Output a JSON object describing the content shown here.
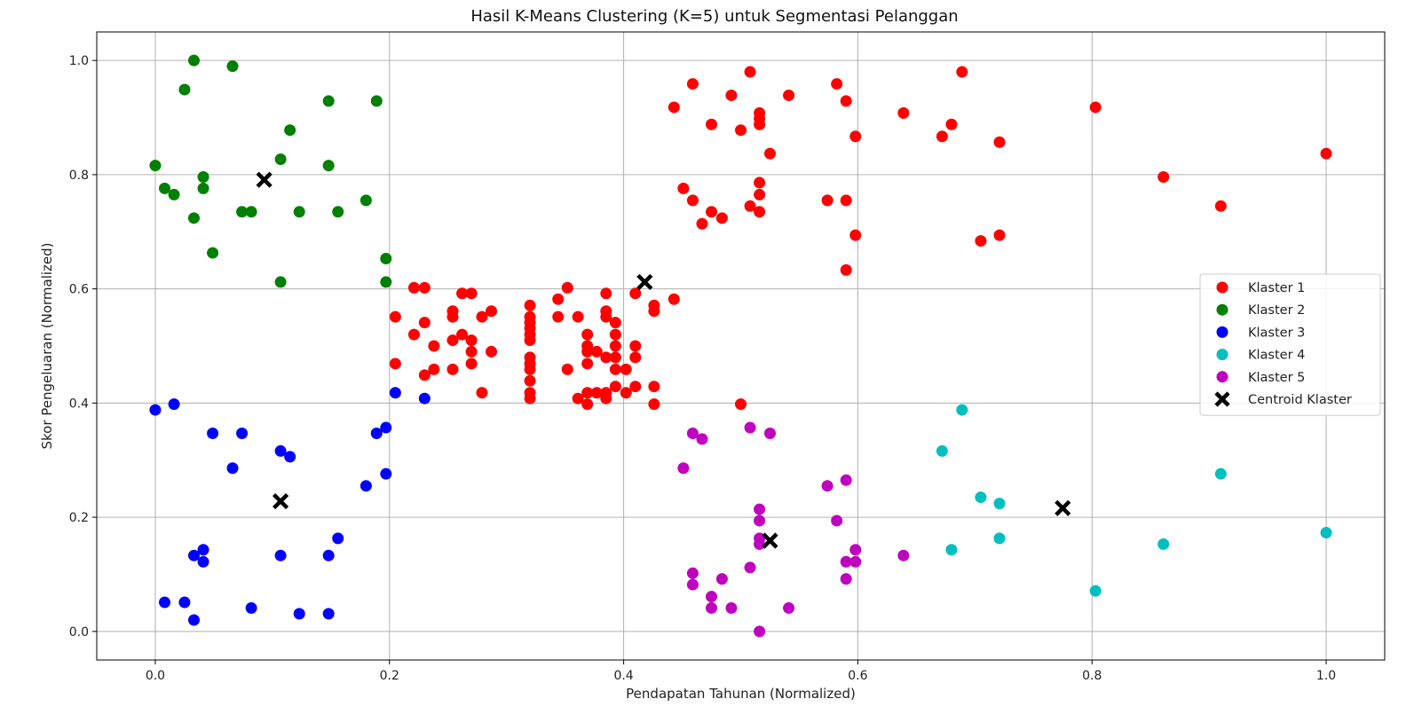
{
  "chart_data": {
    "type": "scatter",
    "title": "Hasil K-Means Clustering (K=5) untuk Segmentasi Pelanggan",
    "xlabel": "Pendapatan Tahunan (Normalized)",
    "ylabel": "Skor Pengeluaran (Normalized)",
    "xlim": [
      -0.05,
      1.05
    ],
    "ylim": [
      -0.05,
      1.05
    ],
    "xticks": [
      0.0,
      0.2,
      0.4,
      0.6,
      0.8,
      1.0
    ],
    "yticks": [
      0.0,
      0.2,
      0.4,
      0.6,
      0.8,
      1.0
    ],
    "xtick_labels": [
      "0.0",
      "0.2",
      "0.4",
      "0.6",
      "0.8",
      "1.0"
    ],
    "ytick_labels": [
      "0.0",
      "0.2",
      "0.4",
      "0.6",
      "0.8",
      "1.0"
    ],
    "grid": true,
    "legend_position": "center-right",
    "series": [
      {
        "name": "Klaster 1",
        "color": "#ff0000",
        "points": [
          [
            0.205,
            0.551
          ],
          [
            0.205,
            0.469
          ],
          [
            0.221,
            0.52
          ],
          [
            0.221,
            0.602
          ],
          [
            0.23,
            0.602
          ],
          [
            0.23,
            0.541
          ],
          [
            0.23,
            0.449
          ],
          [
            0.238,
            0.5
          ],
          [
            0.238,
            0.459
          ],
          [
            0.254,
            0.561
          ],
          [
            0.254,
            0.551
          ],
          [
            0.254,
            0.51
          ],
          [
            0.254,
            0.459
          ],
          [
            0.262,
            0.592
          ],
          [
            0.262,
            0.52
          ],
          [
            0.27,
            0.592
          ],
          [
            0.27,
            0.51
          ],
          [
            0.27,
            0.49
          ],
          [
            0.27,
            0.469
          ],
          [
            0.279,
            0.551
          ],
          [
            0.279,
            0.418
          ],
          [
            0.287,
            0.561
          ],
          [
            0.287,
            0.49
          ],
          [
            0.32,
            0.571
          ],
          [
            0.32,
            0.551
          ],
          [
            0.32,
            0.541
          ],
          [
            0.32,
            0.531
          ],
          [
            0.32,
            0.52
          ],
          [
            0.32,
            0.51
          ],
          [
            0.32,
            0.48
          ],
          [
            0.32,
            0.469
          ],
          [
            0.32,
            0.459
          ],
          [
            0.32,
            0.439
          ],
          [
            0.32,
            0.418
          ],
          [
            0.32,
            0.408
          ],
          [
            0.344,
            0.582
          ],
          [
            0.344,
            0.551
          ],
          [
            0.352,
            0.602
          ],
          [
            0.352,
            0.459
          ],
          [
            0.361,
            0.551
          ],
          [
            0.361,
            0.408
          ],
          [
            0.369,
            0.52
          ],
          [
            0.369,
            0.5
          ],
          [
            0.369,
            0.49
          ],
          [
            0.369,
            0.469
          ],
          [
            0.369,
            0.418
          ],
          [
            0.369,
            0.398
          ],
          [
            0.377,
            0.49
          ],
          [
            0.377,
            0.418
          ],
          [
            0.385,
            0.592
          ],
          [
            0.385,
            0.561
          ],
          [
            0.385,
            0.551
          ],
          [
            0.385,
            0.48
          ],
          [
            0.385,
            0.418
          ],
          [
            0.385,
            0.408
          ],
          [
            0.393,
            0.541
          ],
          [
            0.393,
            0.52
          ],
          [
            0.393,
            0.5
          ],
          [
            0.393,
            0.48
          ],
          [
            0.393,
            0.459
          ],
          [
            0.393,
            0.429
          ],
          [
            0.402,
            0.459
          ],
          [
            0.402,
            0.418
          ],
          [
            0.41,
            0.592
          ],
          [
            0.41,
            0.5
          ],
          [
            0.41,
            0.48
          ],
          [
            0.41,
            0.429
          ],
          [
            0.426,
            0.571
          ],
          [
            0.426,
            0.561
          ],
          [
            0.426,
            0.429
          ],
          [
            0.426,
            0.398
          ],
          [
            0.443,
            0.582
          ],
          [
            0.443,
            0.918
          ],
          [
            0.451,
            0.776
          ],
          [
            0.459,
            0.959
          ],
          [
            0.459,
            0.755
          ],
          [
            0.467,
            0.714
          ],
          [
            0.475,
            0.888
          ],
          [
            0.475,
            0.735
          ],
          [
            0.484,
            0.724
          ],
          [
            0.492,
            0.939
          ],
          [
            0.5,
            0.878
          ],
          [
            0.508,
            0.98
          ],
          [
            0.508,
            0.745
          ],
          [
            0.516,
            0.908
          ],
          [
            0.516,
            0.898
          ],
          [
            0.516,
            0.888
          ],
          [
            0.516,
            0.786
          ],
          [
            0.516,
            0.765
          ],
          [
            0.516,
            0.735
          ],
          [
            0.525,
            0.837
          ],
          [
            0.541,
            0.939
          ],
          [
            0.574,
            0.755
          ],
          [
            0.582,
            0.959
          ],
          [
            0.59,
            0.929
          ],
          [
            0.59,
            0.755
          ],
          [
            0.59,
            0.633
          ],
          [
            0.598,
            0.867
          ],
          [
            0.598,
            0.694
          ],
          [
            0.639,
            0.908
          ],
          [
            0.672,
            0.867
          ],
          [
            0.68,
            0.888
          ],
          [
            0.689,
            0.98
          ],
          [
            0.705,
            0.684
          ],
          [
            0.721,
            0.857
          ],
          [
            0.721,
            0.694
          ],
          [
            0.803,
            0.918
          ],
          [
            0.861,
            0.796
          ],
          [
            0.91,
            0.745
          ],
          [
            1.0,
            0.837
          ],
          [
            0.5,
            0.398
          ]
        ]
      },
      {
        "name": "Klaster 2",
        "color": "#008000",
        "points": [
          [
            0.0,
            0.816
          ],
          [
            0.008,
            0.776
          ],
          [
            0.016,
            0.765
          ],
          [
            0.025,
            0.949
          ],
          [
            0.033,
            1.0
          ],
          [
            0.033,
            0.724
          ],
          [
            0.041,
            0.796
          ],
          [
            0.041,
            0.776
          ],
          [
            0.049,
            0.663
          ],
          [
            0.066,
            0.99
          ],
          [
            0.074,
            0.735
          ],
          [
            0.082,
            0.735
          ],
          [
            0.107,
            0.827
          ],
          [
            0.107,
            0.612
          ],
          [
            0.115,
            0.878
          ],
          [
            0.123,
            0.735
          ],
          [
            0.148,
            0.929
          ],
          [
            0.148,
            0.816
          ],
          [
            0.156,
            0.735
          ],
          [
            0.18,
            0.755
          ],
          [
            0.189,
            0.929
          ],
          [
            0.197,
            0.653
          ],
          [
            0.197,
            0.612
          ]
        ]
      },
      {
        "name": "Klaster 3",
        "color": "#0000ff",
        "points": [
          [
            0.0,
            0.388
          ],
          [
            0.008,
            0.051
          ],
          [
            0.016,
            0.398
          ],
          [
            0.025,
            0.051
          ],
          [
            0.033,
            0.133
          ],
          [
            0.033,
            0.02
          ],
          [
            0.041,
            0.143
          ],
          [
            0.041,
            0.122
          ],
          [
            0.049,
            0.347
          ],
          [
            0.066,
            0.286
          ],
          [
            0.074,
            0.347
          ],
          [
            0.082,
            0.041
          ],
          [
            0.107,
            0.316
          ],
          [
            0.107,
            0.133
          ],
          [
            0.115,
            0.306
          ],
          [
            0.123,
            0.031
          ],
          [
            0.148,
            0.133
          ],
          [
            0.148,
            0.031
          ],
          [
            0.156,
            0.163
          ],
          [
            0.18,
            0.255
          ],
          [
            0.189,
            0.347
          ],
          [
            0.197,
            0.357
          ],
          [
            0.197,
            0.276
          ],
          [
            0.205,
            0.418
          ],
          [
            0.23,
            0.408
          ]
        ]
      },
      {
        "name": "Klaster 4",
        "color": "#00bfbf",
        "points": [
          [
            0.672,
            0.316
          ],
          [
            0.68,
            0.143
          ],
          [
            0.689,
            0.388
          ],
          [
            0.705,
            0.235
          ],
          [
            0.721,
            0.224
          ],
          [
            0.721,
            0.163
          ],
          [
            0.803,
            0.071
          ],
          [
            0.861,
            0.153
          ],
          [
            0.91,
            0.276
          ],
          [
            1.0,
            0.173
          ]
        ]
      },
      {
        "name": "Klaster 5",
        "color": "#bf00bf",
        "points": [
          [
            0.451,
            0.286
          ],
          [
            0.459,
            0.347
          ],
          [
            0.459,
            0.102
          ],
          [
            0.459,
            0.082
          ],
          [
            0.467,
            0.337
          ],
          [
            0.475,
            0.061
          ],
          [
            0.475,
            0.041
          ],
          [
            0.484,
            0.092
          ],
          [
            0.492,
            0.041
          ],
          [
            0.508,
            0.357
          ],
          [
            0.508,
            0.112
          ],
          [
            0.516,
            0.214
          ],
          [
            0.516,
            0.194
          ],
          [
            0.516,
            0.163
          ],
          [
            0.516,
            0.153
          ],
          [
            0.516,
            0.0
          ],
          [
            0.525,
            0.347
          ],
          [
            0.541,
            0.041
          ],
          [
            0.574,
            0.255
          ],
          [
            0.582,
            0.194
          ],
          [
            0.59,
            0.265
          ],
          [
            0.59,
            0.122
          ],
          [
            0.59,
            0.092
          ],
          [
            0.598,
            0.143
          ],
          [
            0.598,
            0.122
          ],
          [
            0.639,
            0.133
          ]
        ]
      }
    ],
    "centroids": {
      "name": "Centroid Klaster",
      "color": "#000000",
      "marker": "x",
      "points": [
        [
          0.418,
          0.612
        ],
        [
          0.093,
          0.791
        ],
        [
          0.107,
          0.228
        ],
        [
          0.775,
          0.216
        ],
        [
          0.525,
          0.159
        ]
      ]
    }
  }
}
